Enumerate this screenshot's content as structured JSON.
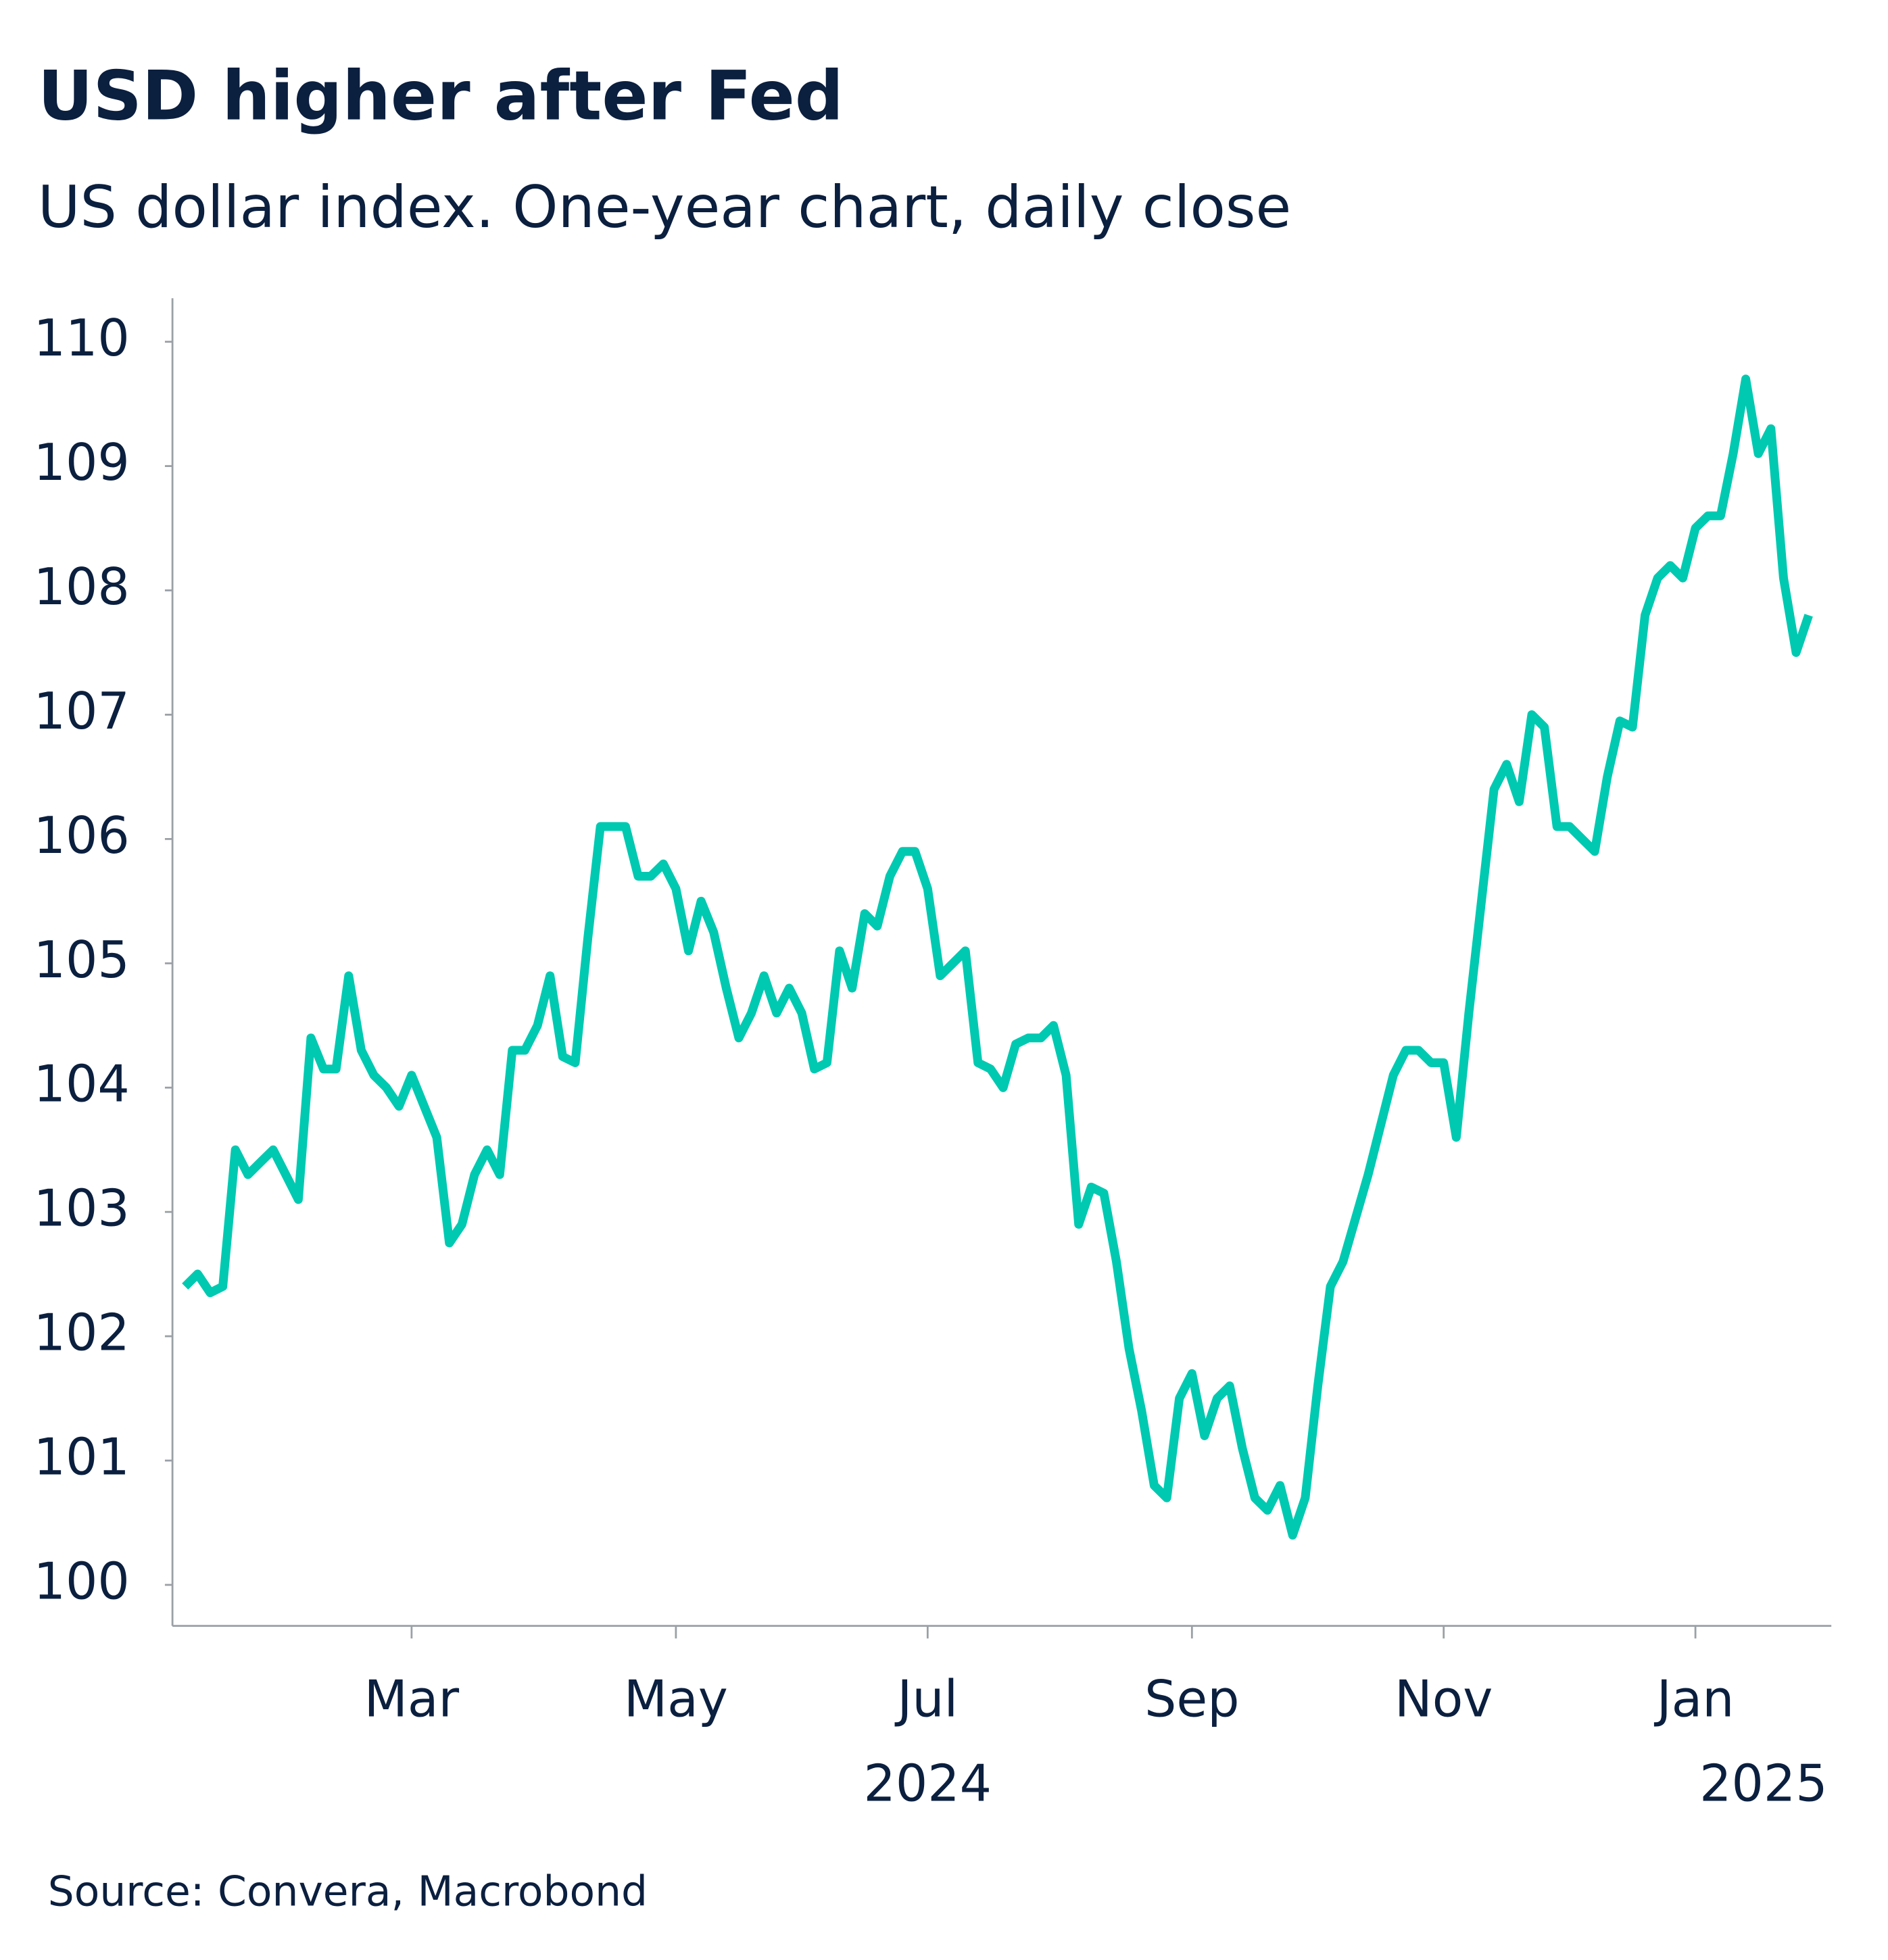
{
  "chart_data": {
    "type": "line",
    "title": "USD higher after Fed",
    "subtitle": "US dollar index. One-year chart, daily close",
    "source": "Source: Convera, Macrobond",
    "categories": [
      null,
      null,
      null,
      null,
      null,
      null,
      null,
      null,
      null,
      null,
      null,
      null,
      null,
      null,
      null,
      null,
      null,
      null,
      "Mar",
      null,
      null,
      null,
      null,
      null,
      null,
      null,
      null,
      null,
      null,
      null,
      null,
      null,
      null,
      null,
      null,
      null,
      null,
      null,
      null,
      "May",
      null,
      null,
      null,
      null,
      null,
      null,
      null,
      null,
      null,
      null,
      null,
      null,
      null,
      null,
      null,
      null,
      null,
      null,
      null,
      "Jul",
      null,
      null,
      null,
      null,
      null,
      null,
      null,
      null,
      null,
      null,
      null,
      null,
      null,
      null,
      null,
      null,
      null,
      null,
      null,
      null,
      "Sep",
      null,
      null,
      null,
      null,
      null,
      null,
      null,
      null,
      null,
      null,
      null,
      null,
      null,
      null,
      null,
      null,
      null,
      null,
      null,
      "Nov",
      null,
      null,
      null,
      null,
      null,
      null,
      null,
      null,
      null,
      null,
      null,
      null,
      null,
      null,
      null,
      null,
      null,
      null,
      null,
      "Jan",
      null,
      null,
      null,
      null,
      null,
      null,
      null,
      null,
      null
    ],
    "year_labels": [
      null,
      null,
      null,
      null,
      null,
      null,
      null,
      null,
      null,
      null,
      null,
      null,
      null,
      null,
      null,
      null,
      null,
      null,
      null,
      null,
      null,
      null,
      null,
      null,
      null,
      null,
      null,
      null,
      null,
      null,
      null,
      null,
      null,
      null,
      null,
      null,
      null,
      null,
      null,
      null,
      null,
      null,
      null,
      null,
      null,
      null,
      null,
      null,
      null,
      null,
      null,
      null,
      null,
      null,
      null,
      null,
      null,
      null,
      null,
      "2024",
      null,
      null,
      null,
      null,
      null,
      null,
      null,
      null,
      null,
      null,
      null,
      null,
      null,
      null,
      null,
      null,
      null,
      null,
      null,
      null,
      null,
      null,
      null,
      null,
      null,
      null,
      null,
      null,
      null,
      null,
      null,
      null,
      null,
      null,
      null,
      null,
      null,
      null,
      null,
      null,
      null,
      null,
      null,
      null,
      null,
      null,
      null,
      null,
      null,
      null,
      null,
      null,
      null,
      null,
      null,
      null,
      null,
      null,
      null,
      null,
      "2025",
      null,
      null,
      null,
      null,
      null,
      null,
      null,
      null,
      null
    ],
    "series": [
      {
        "name": "US dollar index",
        "color": "#00c9b1",
        "values": [
          102.4,
          102.5,
          102.35,
          102.4,
          103.5,
          103.3,
          103.4,
          103.5,
          103.3,
          103.1,
          104.4,
          104.15,
          104.15,
          104.9,
          104.3,
          104.1,
          104.0,
          103.85,
          104.1,
          103.85,
          103.6,
          102.75,
          102.9,
          103.3,
          103.5,
          103.3,
          104.3,
          104.3,
          104.5,
          104.9,
          104.25,
          104.2,
          105.2,
          106.1,
          106.1,
          106.1,
          105.7,
          105.7,
          105.8,
          105.6,
          105.1,
          105.5,
          105.25,
          104.8,
          104.4,
          104.6,
          104.9,
          104.6,
          104.8,
          104.6,
          104.15,
          104.2,
          105.1,
          104.8,
          105.4,
          105.3,
          105.7,
          105.9,
          105.9,
          105.6,
          104.9,
          105.0,
          105.1,
          104.2,
          104.15,
          104.0,
          104.35,
          104.4,
          104.4,
          104.5,
          104.1,
          102.9,
          103.2,
          103.15,
          102.6,
          101.9,
          101.4,
          100.8,
          100.7,
          101.5,
          101.7,
          101.2,
          101.5,
          101.6,
          101.1,
          100.7,
          100.6,
          100.8,
          100.4,
          100.7,
          101.6,
          102.4,
          102.6,
          102.95,
          103.3,
          103.7,
          104.1,
          104.3,
          104.3,
          104.2,
          104.2,
          103.6,
          104.6,
          105.5,
          106.4,
          106.6,
          106.3,
          107.0,
          106.9,
          106.1,
          106.1,
          106.0,
          105.9,
          106.5,
          106.95,
          106.9,
          107.8,
          108.1,
          108.2,
          108.1,
          108.5,
          108.6,
          108.6,
          109.1,
          109.7,
          109.1,
          109.3,
          108.1,
          107.5,
          107.8
        ]
      }
    ],
    "ylim": [
      99.67,
      110.35
    ],
    "yticks": [
      100,
      101,
      102,
      103,
      104,
      105,
      106,
      107,
      108,
      109,
      110
    ],
    "grid": false
  }
}
